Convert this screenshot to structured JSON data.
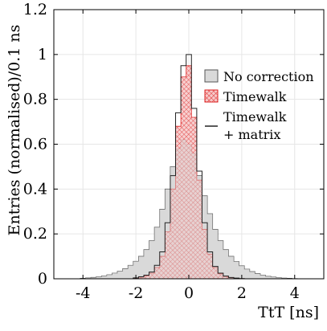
{
  "chart_data": {
    "type": "histogram",
    "xlabel": "TtT [ns]",
    "ylabel": "Entries (normalised)/0.1 ns",
    "xlim": [
      -5.1,
      5.1
    ],
    "ylim": [
      0,
      1.2
    ],
    "xticks": [
      "-4",
      "-2",
      "0",
      "2",
      "4"
    ],
    "yticks": [
      "0",
      "0.2",
      "0.4",
      "0.6",
      "0.8",
      "1",
      "1.2"
    ],
    "bin_width": 0.1,
    "grid": true,
    "legend_position": "right",
    "series": [
      {
        "name": "No correction",
        "style": "filled-gray",
        "color": "#d9d9d9",
        "edge": "#555555",
        "x": [
          -4.0,
          -3.8,
          -3.6,
          -3.4,
          -3.2,
          -3.0,
          -2.8,
          -2.6,
          -2.4,
          -2.2,
          -2.0,
          -1.8,
          -1.6,
          -1.4,
          -1.2,
          -1.0,
          -0.8,
          -0.6,
          -0.4,
          -0.2,
          0.0,
          0.2,
          0.4,
          0.6,
          0.8,
          1.0,
          1.2,
          1.4,
          1.6,
          1.8,
          2.0,
          2.2,
          2.4,
          2.6,
          2.8,
          3.0,
          3.2,
          3.4,
          3.6,
          3.8,
          4.0
        ],
        "values": [
          0.002,
          0.004,
          0.006,
          0.009,
          0.013,
          0.018,
          0.025,
          0.034,
          0.045,
          0.06,
          0.078,
          0.1,
          0.13,
          0.17,
          0.23,
          0.31,
          0.4,
          0.5,
          0.58,
          0.62,
          0.6,
          0.56,
          0.46,
          0.37,
          0.29,
          0.22,
          0.17,
          0.13,
          0.1,
          0.077,
          0.058,
          0.043,
          0.032,
          0.023,
          0.016,
          0.011,
          0.008,
          0.005,
          0.003,
          0.002,
          0.001
        ]
      },
      {
        "name": "Timewalk",
        "style": "red-crosshatch",
        "color": "#dd2222",
        "x": [
          -2.0,
          -1.8,
          -1.6,
          -1.4,
          -1.2,
          -1.0,
          -0.8,
          -0.6,
          -0.4,
          -0.2,
          0.0,
          0.2,
          0.4,
          0.6,
          0.8,
          1.0,
          1.2,
          1.4,
          1.6,
          1.8,
          2.0
        ],
        "values": [
          0.003,
          0.007,
          0.013,
          0.025,
          0.05,
          0.1,
          0.21,
          0.4,
          0.68,
          0.9,
          0.95,
          0.72,
          0.44,
          0.22,
          0.11,
          0.05,
          0.022,
          0.01,
          0.005,
          0.002,
          0.001
        ]
      },
      {
        "name": "Timewalk\n+ matrix",
        "style": "line",
        "color": "#222222",
        "x": [
          -2.0,
          -1.8,
          -1.6,
          -1.4,
          -1.2,
          -1.0,
          -0.8,
          -0.6,
          -0.4,
          -0.2,
          0.0,
          0.2,
          0.4,
          0.6,
          0.8,
          1.0,
          1.2,
          1.4,
          1.6,
          1.8,
          2.0
        ],
        "values": [
          0.004,
          0.009,
          0.016,
          0.03,
          0.06,
          0.12,
          0.25,
          0.46,
          0.74,
          0.95,
          1.0,
          0.76,
          0.48,
          0.25,
          0.12,
          0.055,
          0.025,
          0.012,
          0.006,
          0.003,
          0.001
        ]
      }
    ]
  }
}
